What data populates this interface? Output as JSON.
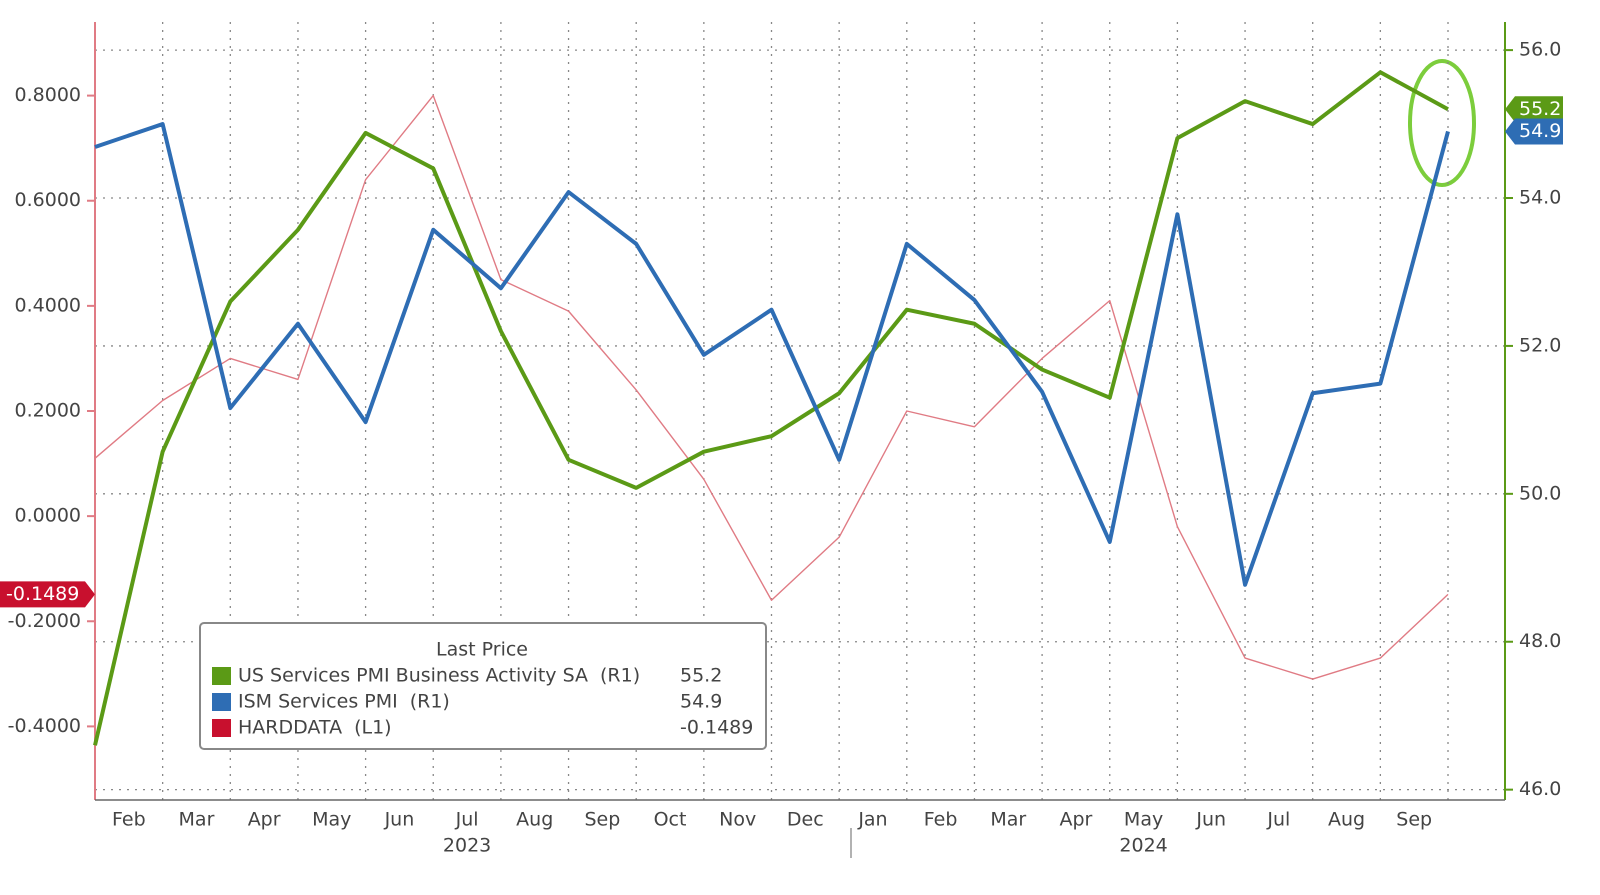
{
  "chart_data": {
    "type": "line",
    "x": [
      "2023-01",
      "2023-02",
      "2023-03",
      "2023-04",
      "2023-05",
      "2023-06",
      "2023-07",
      "2023-08",
      "2023-09",
      "2023-10",
      "2023-11",
      "2023-12",
      "2024-01",
      "2024-02",
      "2024-03",
      "2024-04",
      "2024-05",
      "2024-06",
      "2024-07",
      "2024-08",
      "2024-09"
    ],
    "series": [
      {
        "name": "US Services PMI Business Activity SA",
        "legend_tag": "(R1)",
        "color": "#5b9a16",
        "axis": "y2",
        "values": [
          46.6,
          50.57,
          52.6,
          53.57,
          54.88,
          54.4,
          52.2,
          50.46,
          50.08,
          50.57,
          50.78,
          51.36,
          52.49,
          52.3,
          51.68,
          51.3,
          54.81,
          55.31,
          55.0,
          55.7,
          55.2
        ]
      },
      {
        "name": "ISM Services PMI",
        "legend_tag": "(R1)",
        "color": "#2e6db4",
        "axis": "y2",
        "values": [
          54.69,
          55.0,
          51.16,
          52.3,
          50.97,
          53.57,
          52.78,
          54.08,
          53.38,
          51.88,
          52.49,
          50.46,
          53.38,
          52.62,
          51.38,
          49.35,
          53.78,
          48.77,
          51.36,
          51.49,
          54.9
        ]
      },
      {
        "name": "HARDDATA",
        "legend_tag": "(L1)",
        "color": "#e07b84",
        "axis": "y",
        "values": [
          0.11,
          0.22,
          0.3,
          0.26,
          0.64,
          0.8,
          0.45,
          0.39,
          0.24,
          0.07,
          -0.16,
          -0.04,
          0.2,
          0.17,
          0.3,
          0.41,
          -0.02,
          -0.27,
          -0.31,
          -0.27,
          -0.1489
        ]
      }
    ],
    "legend_title": "Last Price",
    "ylim": [
      -0.54,
      0.94
    ],
    "yticks": [
      {
        "value": -0.4,
        "label": "-0.4000"
      },
      {
        "value": -0.2,
        "label": "-0.2000"
      },
      {
        "value": 0,
        "label": "0.0000"
      },
      {
        "value": 0.2,
        "label": "0.2000"
      },
      {
        "value": 0.4,
        "label": "0.4000"
      },
      {
        "value": 0.6,
        "label": "0.6000"
      },
      {
        "value": 0.8,
        "label": "0.8000"
      }
    ],
    "y2lim": [
      45.86,
      56.38
    ],
    "y2ticks": [
      {
        "value": 46,
        "label": "46.0"
      },
      {
        "value": 48,
        "label": "48.0"
      },
      {
        "value": 50,
        "label": "50.0"
      },
      {
        "value": 52,
        "label": "52.0"
      },
      {
        "value": 54,
        "label": "54.0"
      },
      {
        "value": 56,
        "label": "56.0"
      }
    ],
    "xticks": [
      {
        "value": "2023-02",
        "label": "Feb"
      },
      {
        "value": "2023-03",
        "label": "Mar"
      },
      {
        "value": "2023-04",
        "label": "Apr"
      },
      {
        "value": "2023-05",
        "label": "May"
      },
      {
        "value": "2023-06",
        "label": "Jun"
      },
      {
        "value": "2023-07",
        "label": "Jul"
      },
      {
        "value": "2023-08",
        "label": "Aug"
      },
      {
        "value": "2023-09",
        "label": "Sep"
      },
      {
        "value": "2023-10",
        "label": "Oct"
      },
      {
        "value": "2023-11",
        "label": "Nov"
      },
      {
        "value": "2023-12",
        "label": "Dec"
      },
      {
        "value": "2024-01",
        "label": "Jan"
      },
      {
        "value": "2024-02",
        "label": "Feb"
      },
      {
        "value": "2024-03",
        "label": "Mar"
      },
      {
        "value": "2024-04",
        "label": "Apr"
      },
      {
        "value": "2024-05",
        "label": "May"
      },
      {
        "value": "2024-06",
        "label": "Jun"
      },
      {
        "value": "2024-07",
        "label": "Jul"
      },
      {
        "value": "2024-08",
        "label": "Aug"
      },
      {
        "value": "2024-09",
        "label": "Sep"
      }
    ],
    "year_labels": [
      "2023",
      "2024"
    ],
    "grid": true
  }
}
